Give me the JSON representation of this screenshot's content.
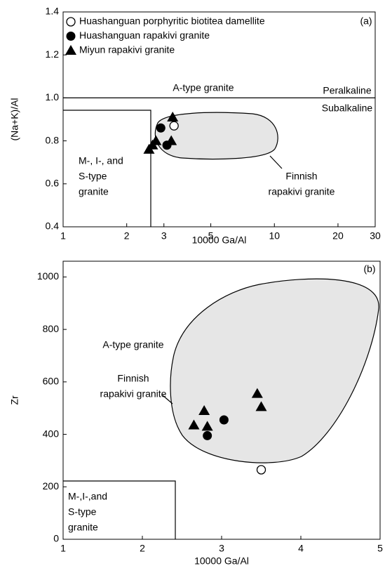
{
  "chart_data": [
    {
      "type": "scatter",
      "panel": "(a)",
      "xlabel": "10000 Ga/Al",
      "ylabel": "(Na+K)/Al",
      "xscale": "log",
      "xlim": [
        1,
        30
      ],
      "xticks": [
        1,
        2,
        3,
        5,
        10,
        20,
        30
      ],
      "ylim": [
        0.4,
        1.4
      ],
      "yticks": [
        0.4,
        0.6,
        0.8,
        {
          "value": 1.0,
          "label": "1.0"
        },
        1.2,
        1.4
      ],
      "legend": "upper left",
      "series": [
        {
          "name": "Huashanguan porphyritic biotitea damellite",
          "marker": "open-circle",
          "color": "#000000",
          "x": [
            3.35
          ],
          "values": [
            0.87
          ]
        },
        {
          "name": "Huashanguan rapakivi granite",
          "marker": "circle",
          "color": "#000000",
          "x": [
            2.9,
            3.1
          ],
          "values": [
            0.86,
            0.78
          ]
        },
        {
          "name": "Miyun rapakivi granite",
          "marker": "triangle",
          "color": "#000000",
          "x": [
            2.55,
            2.65,
            2.75,
            3.25,
            3.3
          ],
          "values": [
            0.76,
            0.78,
            0.8,
            0.8,
            0.91
          ]
        }
      ],
      "annotations": [
        {
          "lines": [
            "A-type granite"
          ]
        },
        {
          "lines": [
            "Peralkaline"
          ]
        },
        {
          "lines": [
            "Subalkaline"
          ]
        },
        {
          "lines": [
            "M-, I-, and",
            "S-type",
            "granite"
          ]
        },
        {
          "lines": [
            "Finnish",
            "rapakivi granite"
          ]
        }
      ]
    },
    {
      "type": "scatter",
      "panel": "(b)",
      "xlabel": "10000 Ga/Al",
      "ylabel": "Zr",
      "xlim": [
        1,
        5
      ],
      "xticks": [
        1,
        2,
        3,
        4,
        5
      ],
      "ylim": [
        0,
        1060
      ],
      "yticks": [
        0,
        200,
        400,
        600,
        800,
        1000
      ],
      "series": [
        {
          "marker": "open-circle",
          "color": "#000000",
          "x": [
            3.5
          ],
          "values": [
            265
          ]
        },
        {
          "marker": "circle",
          "color": "#000000",
          "x": [
            2.82,
            3.03
          ],
          "values": [
            395,
            455
          ]
        },
        {
          "marker": "triangle",
          "color": "#000000",
          "x": [
            2.65,
            2.78,
            2.82,
            3.45,
            3.5
          ],
          "values": [
            435,
            490,
            430,
            555,
            505
          ]
        }
      ],
      "annotations": [
        {
          "lines": [
            "A-type granite"
          ]
        },
        {
          "lines": [
            "Finnish",
            "rapakivi granite"
          ]
        },
        {
          "lines": [
            "M-,I-,and",
            "S-type",
            "granite"
          ]
        }
      ]
    }
  ]
}
